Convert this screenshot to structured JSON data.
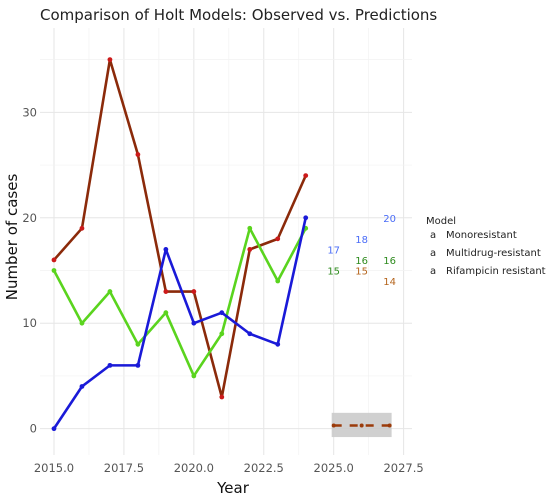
{
  "chart_data": {
    "type": "line",
    "title": "Comparison of Holt Models: Observed vs. Predictions",
    "xlabel": "Year",
    "ylabel": "Number of cases",
    "xlim": [
      2014.5,
      2027.8
    ],
    "ylim": [
      -2.5,
      38
    ],
    "x_ticks": [
      "2015.0",
      "2017.5",
      "2020.0",
      "2022.5",
      "2025.0",
      "2027.5"
    ],
    "x_tick_values": [
      2015,
      2017.5,
      2020,
      2022.5,
      2025,
      2027.5
    ],
    "y_ticks": [
      "0",
      "10",
      "20",
      "30"
    ],
    "y_tick_values": [
      0,
      10,
      20,
      30
    ],
    "grid": true,
    "legend_title": "Model",
    "legend_position": "right",
    "series": [
      {
        "name": "Monoresistant",
        "color": "#b5651d",
        "line_color": "#8b2a0a",
        "point_color": "#cc1a1a",
        "x": [
          2015,
          2016,
          2017,
          2018,
          2019,
          2020,
          2021,
          2022,
          2023,
          2024
        ],
        "values": [
          16,
          19,
          35,
          26,
          13,
          13,
          3,
          17,
          18,
          24
        ],
        "prediction_labels": [
          "15",
          "14"
        ],
        "prediction_values": [
          15,
          14
        ]
      },
      {
        "name": "Multidrug-resistant",
        "color": "#2e8b1e",
        "line_color": "#5ad41e",
        "point_color": "#5ad41e",
        "x": [
          2015,
          2016,
          2017,
          2018,
          2019,
          2020,
          2021,
          2022,
          2023,
          2024
        ],
        "values": [
          15,
          10,
          13,
          8,
          11,
          5,
          9,
          19,
          14,
          19
        ],
        "prediction_labels": [
          "15",
          "16",
          "16"
        ],
        "prediction_values": [
          15,
          16,
          16
        ]
      },
      {
        "name": "Rifampicin resistant",
        "color": "#4a6cf7",
        "line_color": "#1a1ad8",
        "point_color": "#1a1ad8",
        "x": [
          2015,
          2016,
          2017,
          2018,
          2019,
          2020,
          2021,
          2022,
          2023,
          2024
        ],
        "values": [
          0,
          4,
          6,
          6,
          17,
          10,
          11,
          9,
          8,
          20
        ],
        "prediction_labels": [
          "17",
          "18",
          "20"
        ],
        "prediction_values": [
          17,
          18,
          20
        ]
      }
    ],
    "forecast": {
      "x": [
        2025,
        2026,
        2027
      ],
      "values": [
        0.3,
        0.3,
        0.3
      ],
      "band": [
        -0.8,
        1.5
      ],
      "line_color": "#9b3b0a",
      "band_color": "#c8c8c8"
    }
  }
}
